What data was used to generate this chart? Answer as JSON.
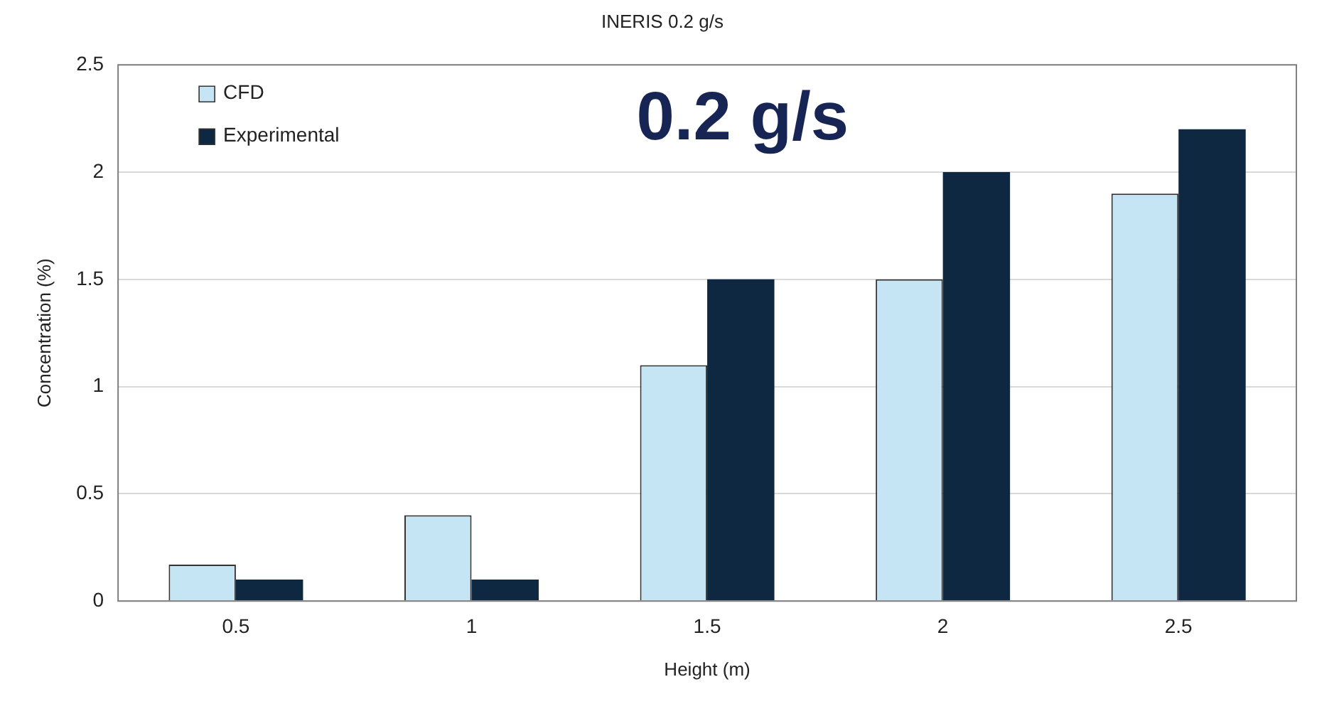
{
  "chart_data": {
    "type": "bar",
    "title": "INERIS 0.2 g/s",
    "xlabel": "Height (m)",
    "ylabel": "Concentration (%)",
    "categories": [
      "0.5",
      "1",
      "1.5",
      "2",
      "2.5"
    ],
    "series": [
      {
        "name": "CFD",
        "color": "#c5e4f4",
        "values": [
          0.17,
          0.4,
          1.1,
          1.5,
          1.9
        ]
      },
      {
        "name": "Experimental",
        "color": "#0e2841",
        "values": [
          0.1,
          0.1,
          1.5,
          2,
          2.2
        ]
      }
    ],
    "ylim": [
      0,
      2.5
    ],
    "yticks": [
      0,
      0.5,
      1,
      1.5,
      2,
      2.5
    ],
    "grid": "y",
    "legend": "top left",
    "annotations": [
      "0.2 g/s"
    ]
  }
}
